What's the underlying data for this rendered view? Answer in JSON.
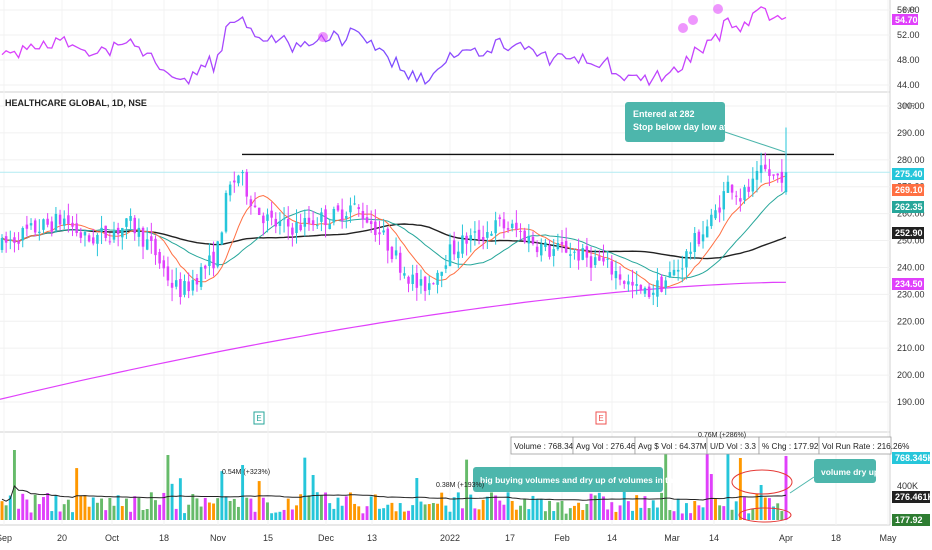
{
  "chart_data": {
    "type": "candlestick",
    "title": "HEALTHCARE GLOBAL, 1D, NSE",
    "currency": "INR",
    "x_tick_labels": [
      "Sep",
      "20",
      "Oct",
      "18",
      "Nov",
      "15",
      "Dec",
      "13",
      "2022",
      "17",
      "Feb",
      "14",
      "Mar",
      "14",
      "Apr",
      "18",
      "May"
    ],
    "rsi_panel": {
      "ticks": [
        44,
        48,
        52,
        56
      ],
      "ylim": [
        43,
        58
      ],
      "current_value": "54.70",
      "currency_label": "INR",
      "highlight_color": "#e040fb"
    },
    "price_panel": {
      "ticks": [
        190,
        200,
        210,
        220,
        230,
        240,
        250,
        260,
        270,
        280,
        290,
        300
      ],
      "ylim": [
        185,
        302
      ],
      "resistance_level": 282,
      "price_tags": [
        {
          "value": "275.40",
          "color": "#26c6da"
        },
        {
          "value": "269.10",
          "color": "#ff7043"
        },
        {
          "value": "262.35",
          "color": "#26a69a"
        },
        {
          "value": "252.90",
          "color": "#212121"
        },
        {
          "value": "234.50",
          "color": "#e040fb"
        }
      ],
      "annotation": "Entered at 282\nStop below day low at 267",
      "earnings_markers": [
        "E",
        "E"
      ]
    },
    "volume_panel": {
      "info_boxes": [
        "Volume : 768.34K",
        "Avg Vol : 276.46K",
        "Avg $ Vol : 64.37M",
        "U/D Vol : 3.3",
        "% Chg : 177.92%",
        "Vol Run Rate : 216.26%"
      ],
      "ticks": [
        "400K"
      ],
      "tags": [
        {
          "value": "768.345K",
          "color": "#26c6da"
        },
        {
          "value": "276.461K",
          "color": "#212121"
        },
        {
          "value": "177.92",
          "color": "#2e7d32"
        }
      ],
      "spike_labels": [
        "0.54M (+323%)",
        "0.38M (+193%)",
        "0.76M (+286%)"
      ],
      "annotation_base": "big buying volumes and dry up of volumes in the base",
      "annotation_dry": "volume dry up"
    }
  }
}
